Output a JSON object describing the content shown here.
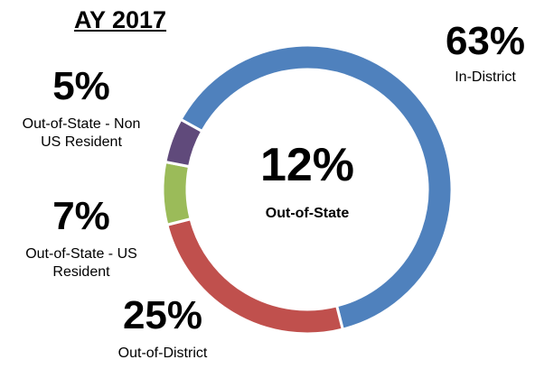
{
  "chart_data": {
    "type": "donut",
    "title": "AY 2017",
    "categories": [
      "In-District",
      "Out-of-District",
      "Out-of-State - US Resident",
      "Out-of-State - Non US Resident"
    ],
    "values": [
      63,
      25,
      7,
      5
    ],
    "value_labels": [
      "63%",
      "25%",
      "7%",
      "5%"
    ],
    "colors": [
      "#4f81bd",
      "#c0504d",
      "#9bbb59",
      "#604a7b"
    ],
    "center": {
      "value": 12,
      "value_label": "12%",
      "label": "Out-of-State"
    }
  }
}
